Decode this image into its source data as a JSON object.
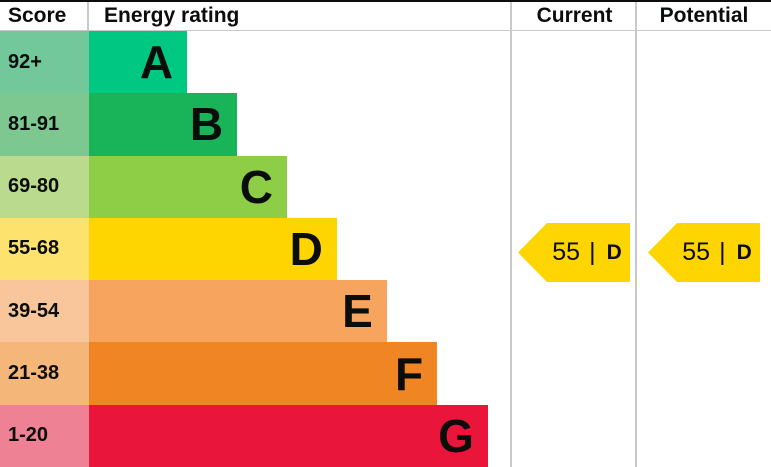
{
  "header": {
    "score": "Score",
    "energy_rating": "Energy rating",
    "current": "Current",
    "potential": "Potential"
  },
  "chart_data": {
    "type": "bar",
    "title": "Energy efficiency rating chart",
    "columns": [
      "Score",
      "Energy rating",
      "Current",
      "Potential"
    ],
    "bands": [
      {
        "score_range": "92+",
        "letter": "A",
        "bar_color": "#00c781",
        "score_bg": "#72c79b",
        "bar_width_pct": 23.2
      },
      {
        "score_range": "81-91",
        "letter": "B",
        "bar_color": "#19b459",
        "score_bg": "#7dc890",
        "bar_width_pct": 35.0
      },
      {
        "score_range": "69-80",
        "letter": "C",
        "bar_color": "#8dce46",
        "score_bg": "#bada8e",
        "bar_width_pct": 46.8
      },
      {
        "score_range": "55-68",
        "letter": "D",
        "bar_color": "#ffd500",
        "score_bg": "#fde26e",
        "bar_width_pct": 58.6
      },
      {
        "score_range": "39-54",
        "letter": "E",
        "bar_color": "#f7a55e",
        "score_bg": "#f9c59b",
        "bar_width_pct": 70.4
      },
      {
        "score_range": "21-38",
        "letter": "F",
        "bar_color": "#ef8523",
        "score_bg": "#f5b679",
        "bar_width_pct": 82.3
      },
      {
        "score_range": "1-20",
        "letter": "G",
        "bar_color": "#e9153b",
        "score_bg": "#ee8294",
        "bar_width_pct": 94.3
      }
    ],
    "current": {
      "value": "55",
      "divider": "|",
      "band": "D",
      "arrow_color": "#ffd500",
      "band_index": 3
    },
    "potential": {
      "value": "55",
      "divider": "|",
      "band": "D",
      "arrow_color": "#ffd500",
      "band_index": 3
    }
  }
}
